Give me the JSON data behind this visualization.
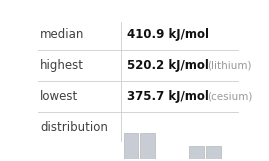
{
  "rows": [
    {
      "label": "median",
      "value": "410.9 kJ/mol",
      "note": ""
    },
    {
      "label": "highest",
      "value": "520.2 kJ/mol",
      "note": "(lithium)"
    },
    {
      "label": "lowest",
      "value": "375.7 kJ/mol",
      "note": "(cesium)"
    },
    {
      "label": "distribution",
      "value": "",
      "note": ""
    }
  ],
  "bar_data": [
    2,
    2,
    0,
    0,
    1,
    1
  ],
  "bar_x": [
    0,
    0.5,
    1.0,
    1.5,
    2.0,
    2.5
  ],
  "bar_color": "#c8ccd4",
  "bar_width": 0.45,
  "bg_color": "#ffffff",
  "label_color": "#404040",
  "value_color": "#111111",
  "note_color": "#999999",
  "line_color": "#cccccc",
  "label_fontsize": 8.5,
  "value_fontsize": 8.5,
  "note_fontsize": 7.5
}
